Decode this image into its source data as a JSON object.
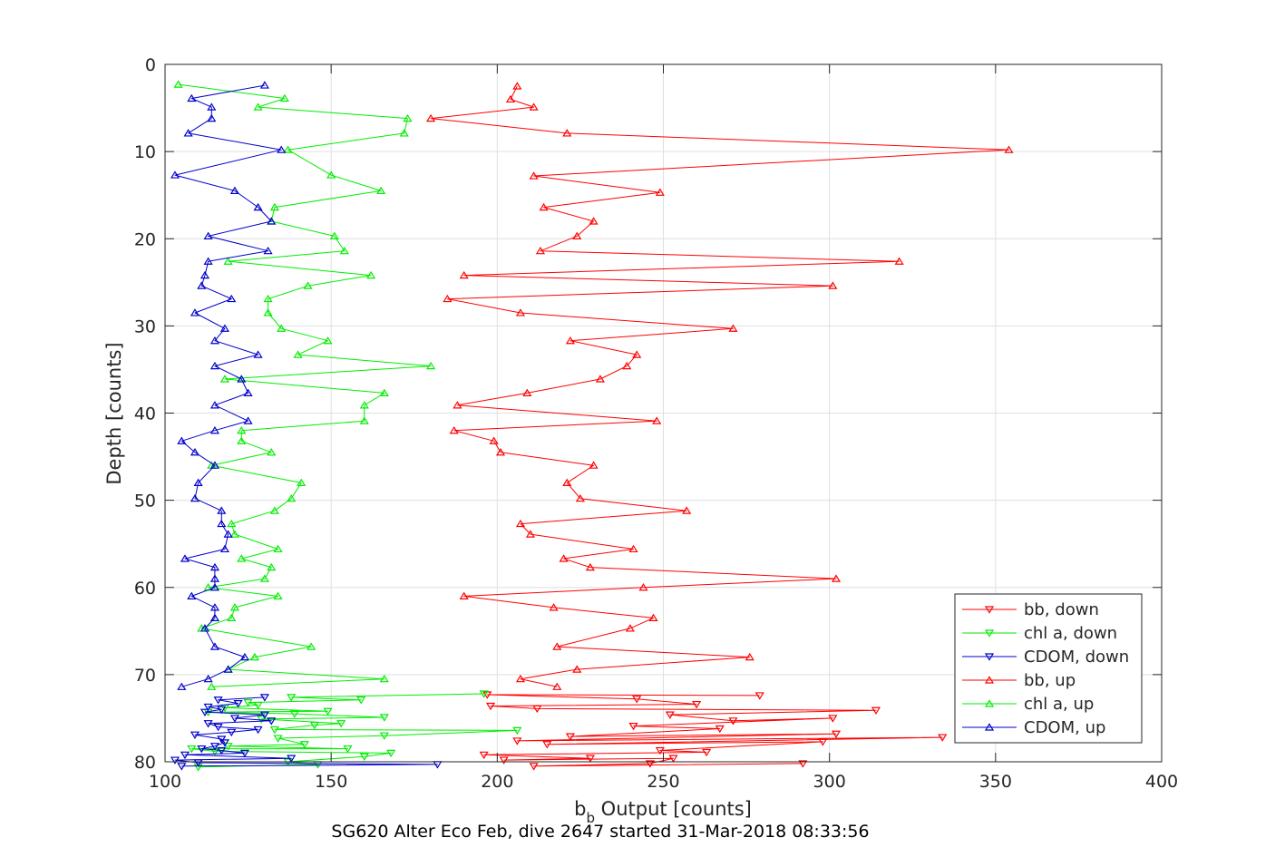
{
  "chart_data": {
    "type": "line",
    "xlabel_base": "b",
    "xlabel_sub": "b",
    "xlabel_rest": " Output [counts]",
    "ylabel": "Depth [counts]",
    "caption": "SG620 Alter Eco Feb, dive 2647 started 31-Mar-2018 08:33:56",
    "xlim": [
      100,
      400
    ],
    "ylim": [
      0,
      80
    ],
    "y_reversed": true,
    "xticks": [
      100,
      150,
      200,
      250,
      300,
      350,
      400
    ],
    "yticks": [
      0,
      10,
      20,
      30,
      40,
      50,
      60,
      70,
      80
    ],
    "grid": true,
    "legend_position": "bottom-right",
    "series": [
      {
        "name": "bb, down",
        "color": "#ff0000",
        "marker": "triangle-down",
        "points": [
          [
            292,
            80.2
          ],
          [
            211,
            80.5
          ],
          [
            246,
            80.2
          ],
          [
            253,
            79.6
          ],
          [
            202,
            79.8
          ],
          [
            228,
            79.6
          ],
          [
            196,
            79.2
          ],
          [
            263,
            78.9
          ],
          [
            249,
            78.7
          ],
          [
            298,
            77.7
          ],
          [
            215,
            78.0
          ],
          [
            334,
            77.2
          ],
          [
            206,
            77.6
          ],
          [
            302,
            76.8
          ],
          [
            222,
            77.1
          ],
          [
            267,
            76.2
          ],
          [
            241,
            75.9
          ],
          [
            301,
            75.0
          ],
          [
            271,
            75.3
          ],
          [
            252,
            74.6
          ],
          [
            314,
            74.1
          ],
          [
            212,
            73.9
          ],
          [
            198,
            73.6
          ],
          [
            260,
            73.4
          ],
          [
            242,
            72.8
          ],
          [
            197,
            72.3
          ],
          [
            279,
            72.4
          ]
        ]
      },
      {
        "name": "chl a, down",
        "color": "#00ee00",
        "marker": "triangle-down",
        "points": [
          [
            110,
            80.6
          ],
          [
            146,
            80.3
          ],
          [
            137,
            80.0
          ],
          [
            160,
            79.4
          ],
          [
            168,
            79.0
          ],
          [
            115,
            78.8
          ],
          [
            108,
            78.5
          ],
          [
            155,
            78.5
          ],
          [
            119,
            78.2
          ],
          [
            142,
            78.0
          ],
          [
            134,
            77.3
          ],
          [
            166,
            77.0
          ],
          [
            206,
            76.4
          ],
          [
            133,
            76.3
          ],
          [
            145,
            75.8
          ],
          [
            153,
            75.6
          ],
          [
            129,
            75.1
          ],
          [
            166,
            74.9
          ],
          [
            139,
            74.5
          ],
          [
            113,
            74.3
          ],
          [
            149,
            74.2
          ],
          [
            118,
            73.8
          ],
          [
            128,
            73.5
          ],
          [
            125,
            73.2
          ],
          [
            159,
            72.9
          ],
          [
            138,
            72.6
          ],
          [
            196,
            72.2
          ]
        ]
      },
      {
        "name": "CDOM, down",
        "color": "#0000cc",
        "marker": "triangle-down",
        "points": [
          [
            105,
            80.5
          ],
          [
            182,
            80.3
          ],
          [
            110,
            80.1
          ],
          [
            103,
            79.8
          ],
          [
            138,
            79.6
          ],
          [
            106,
            79.2
          ],
          [
            124,
            79.0
          ],
          [
            117,
            78.7
          ],
          [
            111,
            78.5
          ],
          [
            115,
            78.2
          ],
          [
            118,
            77.8
          ],
          [
            117,
            77.4
          ],
          [
            109,
            76.9
          ],
          [
            120,
            76.6
          ],
          [
            128,
            76.3
          ],
          [
            116,
            76.0
          ],
          [
            113,
            75.6
          ],
          [
            132,
            75.3
          ],
          [
            121,
            75.0
          ],
          [
            130,
            74.6
          ],
          [
            112,
            74.3
          ],
          [
            117,
            74.0
          ],
          [
            113,
            73.7
          ],
          [
            122,
            73.3
          ],
          [
            116,
            72.9
          ],
          [
            130,
            72.6
          ]
        ]
      },
      {
        "name": "bb, up",
        "color": "#ff0000",
        "marker": "triangle-up",
        "points": [
          [
            206,
            2.5
          ],
          [
            204,
            4.0
          ],
          [
            211,
            4.9
          ],
          [
            180,
            6.2
          ],
          [
            221,
            7.9
          ],
          [
            354,
            9.8
          ],
          [
            211,
            12.8
          ],
          [
            249,
            14.7
          ],
          [
            214,
            16.4
          ],
          [
            229,
            18.0
          ],
          [
            224,
            19.7
          ],
          [
            213,
            21.4
          ],
          [
            321,
            22.6
          ],
          [
            190,
            24.2
          ],
          [
            301,
            25.4
          ],
          [
            185,
            26.9
          ],
          [
            207,
            28.5
          ],
          [
            271,
            30.3
          ],
          [
            222,
            31.7
          ],
          [
            242,
            33.3
          ],
          [
            239,
            34.6
          ],
          [
            231,
            36.1
          ],
          [
            209,
            37.7
          ],
          [
            188,
            39.1
          ],
          [
            248,
            40.9
          ],
          [
            187,
            42.0
          ],
          [
            199,
            43.2
          ],
          [
            201,
            44.5
          ],
          [
            229,
            46.0
          ],
          [
            221,
            48.0
          ],
          [
            225,
            49.8
          ],
          [
            257,
            51.2
          ],
          [
            207,
            52.7
          ],
          [
            210,
            53.9
          ],
          [
            241,
            55.6
          ],
          [
            220,
            56.7
          ],
          [
            228,
            57.7
          ],
          [
            302,
            59.0
          ],
          [
            244,
            60.0
          ],
          [
            190,
            61.0
          ],
          [
            217,
            62.3
          ],
          [
            247,
            63.5
          ],
          [
            240,
            64.7
          ],
          [
            218,
            66.8
          ],
          [
            276,
            68.0
          ],
          [
            224,
            69.4
          ],
          [
            207,
            70.5
          ],
          [
            218,
            71.4
          ]
        ]
      },
      {
        "name": "chl a, up",
        "color": "#00ee00",
        "marker": "triangle-up",
        "points": [
          [
            104,
            2.3
          ],
          [
            136,
            3.9
          ],
          [
            128,
            4.9
          ],
          [
            173,
            6.2
          ],
          [
            172,
            7.9
          ],
          [
            137,
            9.8
          ],
          [
            150,
            12.7
          ],
          [
            165,
            14.5
          ],
          [
            133,
            16.4
          ],
          [
            132,
            18.0
          ],
          [
            151,
            19.7
          ],
          [
            154,
            21.4
          ],
          [
            119,
            22.6
          ],
          [
            162,
            24.2
          ],
          [
            143,
            25.4
          ],
          [
            131,
            26.9
          ],
          [
            131,
            28.5
          ],
          [
            135,
            30.3
          ],
          [
            149,
            31.7
          ],
          [
            140,
            33.3
          ],
          [
            180,
            34.6
          ],
          [
            118,
            36.1
          ],
          [
            166,
            37.7
          ],
          [
            160,
            39.1
          ],
          [
            160,
            40.9
          ],
          [
            123,
            42.0
          ],
          [
            123,
            43.2
          ],
          [
            132,
            44.5
          ],
          [
            114,
            46.0
          ],
          [
            141,
            48.0
          ],
          [
            138,
            49.8
          ],
          [
            133,
            51.2
          ],
          [
            120,
            52.7
          ],
          [
            121,
            53.9
          ],
          [
            134,
            55.6
          ],
          [
            123,
            56.7
          ],
          [
            132,
            57.7
          ],
          [
            130,
            59.0
          ],
          [
            113,
            60.0
          ],
          [
            134,
            61.0
          ],
          [
            121,
            62.3
          ],
          [
            120,
            63.5
          ],
          [
            111,
            64.7
          ],
          [
            144,
            66.8
          ],
          [
            127,
            68.0
          ],
          [
            119,
            69.4
          ],
          [
            166,
            70.5
          ],
          [
            114,
            71.4
          ]
        ]
      },
      {
        "name": "CDOM, up",
        "color": "#0000cc",
        "marker": "triangle-up",
        "points": [
          [
            130,
            2.4
          ],
          [
            108,
            3.9
          ],
          [
            114,
            4.9
          ],
          [
            114,
            6.2
          ],
          [
            107,
            7.9
          ],
          [
            135,
            9.8
          ],
          [
            103,
            12.7
          ],
          [
            121,
            14.5
          ],
          [
            128,
            16.4
          ],
          [
            132,
            18.0
          ],
          [
            113,
            19.7
          ],
          [
            131,
            21.4
          ],
          [
            113,
            22.6
          ],
          [
            112,
            24.2
          ],
          [
            111,
            25.4
          ],
          [
            120,
            26.9
          ],
          [
            109,
            28.5
          ],
          [
            118,
            30.3
          ],
          [
            115,
            31.7
          ],
          [
            128,
            33.3
          ],
          [
            115,
            34.6
          ],
          [
            123,
            36.1
          ],
          [
            125,
            37.7
          ],
          [
            115,
            39.1
          ],
          [
            125,
            40.9
          ],
          [
            115,
            42.0
          ],
          [
            105,
            43.2
          ],
          [
            109,
            44.5
          ],
          [
            115,
            46.0
          ],
          [
            110,
            48.0
          ],
          [
            109,
            49.8
          ],
          [
            117,
            51.2
          ],
          [
            117,
            52.7
          ],
          [
            119,
            53.9
          ],
          [
            118,
            55.6
          ],
          [
            106,
            56.7
          ],
          [
            115,
            57.7
          ],
          [
            115,
            59.0
          ],
          [
            115,
            60.0
          ],
          [
            108,
            61.0
          ],
          [
            115,
            62.3
          ],
          [
            115,
            63.5
          ],
          [
            112,
            64.7
          ],
          [
            115,
            66.8
          ],
          [
            124,
            68.0
          ],
          [
            119,
            69.4
          ],
          [
            113,
            70.5
          ],
          [
            105,
            71.4
          ]
        ]
      }
    ]
  }
}
